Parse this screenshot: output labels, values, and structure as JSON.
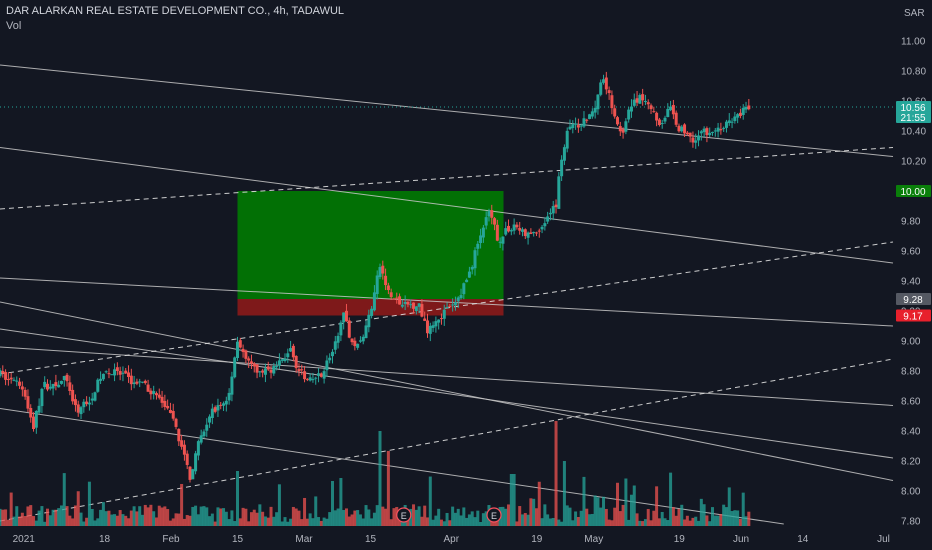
{
  "header": {
    "symbol_line": "DAR ALARKAN REAL ESTATE DEVELOPMENT CO., 4h, TADAWUL",
    "volume_label": "Vol",
    "currency": "SAR"
  },
  "colors": {
    "background": "#131722",
    "up": "#26a69a",
    "down": "#ef5350",
    "grid_text": "#b2b5be",
    "trendline": "#c8c8c8",
    "target_zone": "#008000",
    "stop_zone": "#8b1a1a"
  },
  "price_badges": {
    "last_price": "10.56",
    "countdown": "21:55",
    "target": "10.00",
    "entry": "9.28",
    "stop": "9.17"
  },
  "position_tool": {
    "entry": 9.28,
    "target": 10.0,
    "stop": 9.17,
    "start_date": "2021-02-15",
    "end_date": "2021-04-12"
  },
  "earnings_markers": [
    {
      "date": "2021-03-22",
      "label": "E"
    },
    {
      "date": "2021-04-10",
      "label": "E"
    }
  ],
  "chart_data": {
    "type": "candlestick",
    "title": "DAR ALARKAN REAL ESTATE DEVELOPMENT CO., 4h, TADAWUL",
    "ylim": [
      7.78,
      11.08
    ],
    "xlim": [
      "2020-12-27",
      "2021-07-03"
    ],
    "y_ticks": [
      "11.00",
      "10.80",
      "10.60",
      "10.40",
      "10.20",
      "10.00",
      "9.80",
      "9.60",
      "9.40",
      "9.20",
      "9.00",
      "8.80",
      "8.60",
      "8.40",
      "8.20",
      "8.00",
      "7.80"
    ],
    "x_ticks": [
      {
        "date": "2021-01-01",
        "label": "2021"
      },
      {
        "date": "2021-01-18",
        "label": "18"
      },
      {
        "date": "2021-02-01",
        "label": "Feb"
      },
      {
        "date": "2021-02-15",
        "label": "15"
      },
      {
        "date": "2021-03-01",
        "label": "Mar"
      },
      {
        "date": "2021-03-15",
        "label": "15"
      },
      {
        "date": "2021-04-01",
        "label": "Apr"
      },
      {
        "date": "2021-04-19",
        "label": "19"
      },
      {
        "date": "2021-05-01",
        "label": "May"
      },
      {
        "date": "2021-05-19",
        "label": "19"
      },
      {
        "date": "2021-06-01",
        "label": "Jun"
      },
      {
        "date": "2021-06-14",
        "label": "14"
      },
      {
        "date": "2021-07-01",
        "label": "Jul"
      }
    ],
    "price_path": [
      [
        "2020-12-27",
        8.78
      ],
      [
        "2021-01-01",
        8.68
      ],
      [
        "2021-01-03",
        8.42
      ],
      [
        "2021-01-05",
        8.7
      ],
      [
        "2021-01-08",
        8.72
      ],
      [
        "2021-01-10",
        8.75
      ],
      [
        "2021-01-12",
        8.53
      ],
      [
        "2021-01-15",
        8.62
      ],
      [
        "2021-01-18",
        8.8
      ],
      [
        "2021-01-21",
        8.78
      ],
      [
        "2021-01-24",
        8.73
      ],
      [
        "2021-01-27",
        8.69
      ],
      [
        "2021-01-30",
        8.6
      ],
      [
        "2021-02-02",
        8.43
      ],
      [
        "2021-02-05",
        8.1
      ],
      [
        "2021-02-07",
        8.33
      ],
      [
        "2021-02-10",
        8.55
      ],
      [
        "2021-02-13",
        8.6
      ],
      [
        "2021-02-15",
        9.02
      ],
      [
        "2021-02-17",
        8.85
      ],
      [
        "2021-02-20",
        8.78
      ],
      [
        "2021-02-24",
        8.85
      ],
      [
        "2021-02-26",
        8.95
      ],
      [
        "2021-02-28",
        8.8
      ],
      [
        "2021-03-02",
        8.72
      ],
      [
        "2021-03-05",
        8.8
      ],
      [
        "2021-03-08",
        9.0
      ],
      [
        "2021-03-09",
        9.2
      ],
      [
        "2021-03-11",
        9.0
      ],
      [
        "2021-03-13",
        8.98
      ],
      [
        "2021-03-15",
        9.2
      ],
      [
        "2021-03-17",
        9.5
      ],
      [
        "2021-03-19",
        9.3
      ],
      [
        "2021-03-22",
        9.23
      ],
      [
        "2021-03-25",
        9.25
      ],
      [
        "2021-03-27",
        9.08
      ],
      [
        "2021-03-30",
        9.18
      ],
      [
        "2021-04-02",
        9.25
      ],
      [
        "2021-04-05",
        9.47
      ],
      [
        "2021-04-07",
        9.7
      ],
      [
        "2021-04-09",
        9.85
      ],
      [
        "2021-04-11",
        9.67
      ],
      [
        "2021-04-14",
        9.78
      ],
      [
        "2021-04-17",
        9.7
      ],
      [
        "2021-04-20",
        9.76
      ],
      [
        "2021-04-23",
        9.9
      ],
      [
        "2021-04-24",
        10.2
      ],
      [
        "2021-04-26",
        10.45
      ],
      [
        "2021-04-28",
        10.42
      ],
      [
        "2021-05-01",
        10.55
      ],
      [
        "2021-05-03",
        10.78
      ],
      [
        "2021-05-05",
        10.55
      ],
      [
        "2021-05-07",
        10.35
      ],
      [
        "2021-05-09",
        10.6
      ],
      [
        "2021-05-12",
        10.62
      ],
      [
        "2021-05-15",
        10.45
      ],
      [
        "2021-05-17",
        10.55
      ],
      [
        "2021-05-19",
        10.42
      ],
      [
        "2021-05-22",
        10.35
      ],
      [
        "2021-05-25",
        10.4
      ],
      [
        "2021-05-28",
        10.42
      ],
      [
        "2021-06-01",
        10.52
      ],
      [
        "2021-06-03",
        10.56
      ]
    ],
    "candles_per_day": 1.7,
    "trendlines_solid": [
      [
        [
          "2020-12-27",
          10.84
        ],
        [
          "2021-07-03",
          10.23
        ]
      ],
      [
        [
          "2020-12-27",
          10.29
        ],
        [
          "2021-07-03",
          9.52
        ]
      ],
      [
        [
          "2020-12-27",
          9.42
        ],
        [
          "2021-07-03",
          9.1
        ]
      ],
      [
        [
          "2020-12-27",
          9.26
        ],
        [
          "2021-07-03",
          8.07
        ]
      ],
      [
        [
          "2020-12-27",
          9.08
        ],
        [
          "2021-07-03",
          8.22
        ]
      ],
      [
        [
          "2020-12-27",
          8.96
        ],
        [
          "2021-07-03",
          8.57
        ]
      ],
      [
        [
          "2020-12-27",
          8.55
        ],
        [
          "2021-06-10",
          7.78
        ]
      ]
    ],
    "trendlines_dashed": [
      [
        [
          "2020-12-27",
          9.88
        ],
        [
          "2021-07-03",
          10.29
        ]
      ],
      [
        [
          "2020-12-27",
          8.78
        ],
        [
          "2021-07-03",
          9.66
        ]
      ],
      [
        [
          "2020-12-27",
          7.8
        ],
        [
          "2021-07-03",
          8.88
        ]
      ]
    ]
  }
}
